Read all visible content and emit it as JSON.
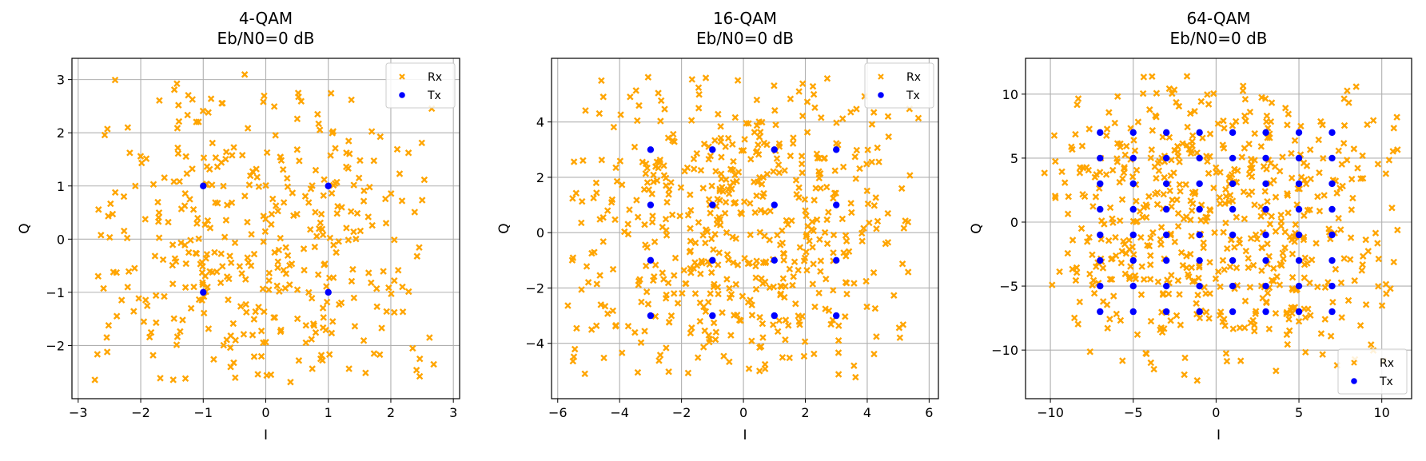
{
  "colors": {
    "rx": "#ffa500",
    "tx": "#0000ff",
    "grid": "#b0b0b0",
    "axes": "#000000"
  },
  "chart_data": [
    {
      "type": "scatter",
      "title_line1": "4-QAM",
      "title_line2": "Eb/N0=0 dB",
      "xlabel": "I",
      "ylabel": "Q",
      "xlim": [
        -3.1,
        3.1
      ],
      "ylim": [
        -3.0,
        3.4
      ],
      "xticks": [
        -3,
        -2,
        -1,
        0,
        1,
        2,
        3
      ],
      "yticks": [
        -2,
        -1,
        0,
        1,
        2,
        3
      ],
      "grid": true,
      "legend": {
        "position": "top-right",
        "entries": [
          "Rx",
          "Tx"
        ]
      },
      "series": [
        {
          "name": "Rx",
          "marker": "x",
          "spread": 1.15,
          "count": 400,
          "extent": [
            -2.8,
            2.8,
            -2.7,
            3.1
          ]
        },
        {
          "name": "Tx",
          "marker": "dot",
          "points": [
            [
              -1,
              1
            ],
            [
              1,
              1
            ],
            [
              -1,
              -1
            ],
            [
              1,
              -1
            ]
          ]
        }
      ]
    },
    {
      "type": "scatter",
      "title_line1": "16-QAM",
      "title_line2": "Eb/N0=0 dB",
      "xlabel": "I",
      "ylabel": "Q",
      "xlim": [
        -6.2,
        6.3
      ],
      "ylim": [
        -6.0,
        6.3
      ],
      "xticks": [
        -6,
        -4,
        -2,
        0,
        2,
        4,
        6
      ],
      "yticks": [
        -4,
        -2,
        0,
        2,
        4
      ],
      "grid": true,
      "legend": {
        "position": "top-right",
        "entries": [
          "Rx",
          "Tx"
        ]
      },
      "series": [
        {
          "name": "Rx",
          "marker": "x",
          "spread": 1.75,
          "count": 550,
          "extent": [
            -5.7,
            5.8,
            -5.3,
            5.7
          ]
        },
        {
          "name": "Tx",
          "marker": "dot",
          "points": [
            [
              -3,
              3
            ],
            [
              -1,
              3
            ],
            [
              1,
              3
            ],
            [
              3,
              3
            ],
            [
              -3,
              1
            ],
            [
              -1,
              1
            ],
            [
              1,
              1
            ],
            [
              3,
              1
            ],
            [
              -3,
              -1
            ],
            [
              -1,
              -1
            ],
            [
              1,
              -1
            ],
            [
              3,
              -1
            ],
            [
              -3,
              -3
            ],
            [
              -1,
              -3
            ],
            [
              1,
              -3
            ],
            [
              3,
              -3
            ]
          ]
        }
      ]
    },
    {
      "type": "scatter",
      "title_line1": "64-QAM",
      "title_line2": "Eb/N0=0 dB",
      "xlabel": "I",
      "ylabel": "Q",
      "xlim": [
        -11.5,
        11.8
      ],
      "ylim": [
        -13.8,
        12.8
      ],
      "xticks": [
        -10,
        -5,
        0,
        5,
        10
      ],
      "yticks": [
        -10,
        -5,
        0,
        5,
        10
      ],
      "grid": true,
      "legend": {
        "position": "bottom-right",
        "entries": [
          "Rx",
          "Tx"
        ]
      },
      "series": [
        {
          "name": "Rx",
          "marker": "x",
          "spread": 3.2,
          "count": 600,
          "extent": [
            -10.4,
            11.0,
            -12.5,
            11.5
          ]
        },
        {
          "name": "Tx",
          "marker": "dot",
          "grid_levels": [
            -7,
            -5,
            -3,
            -1,
            1,
            3,
            5,
            7
          ]
        }
      ]
    }
  ]
}
